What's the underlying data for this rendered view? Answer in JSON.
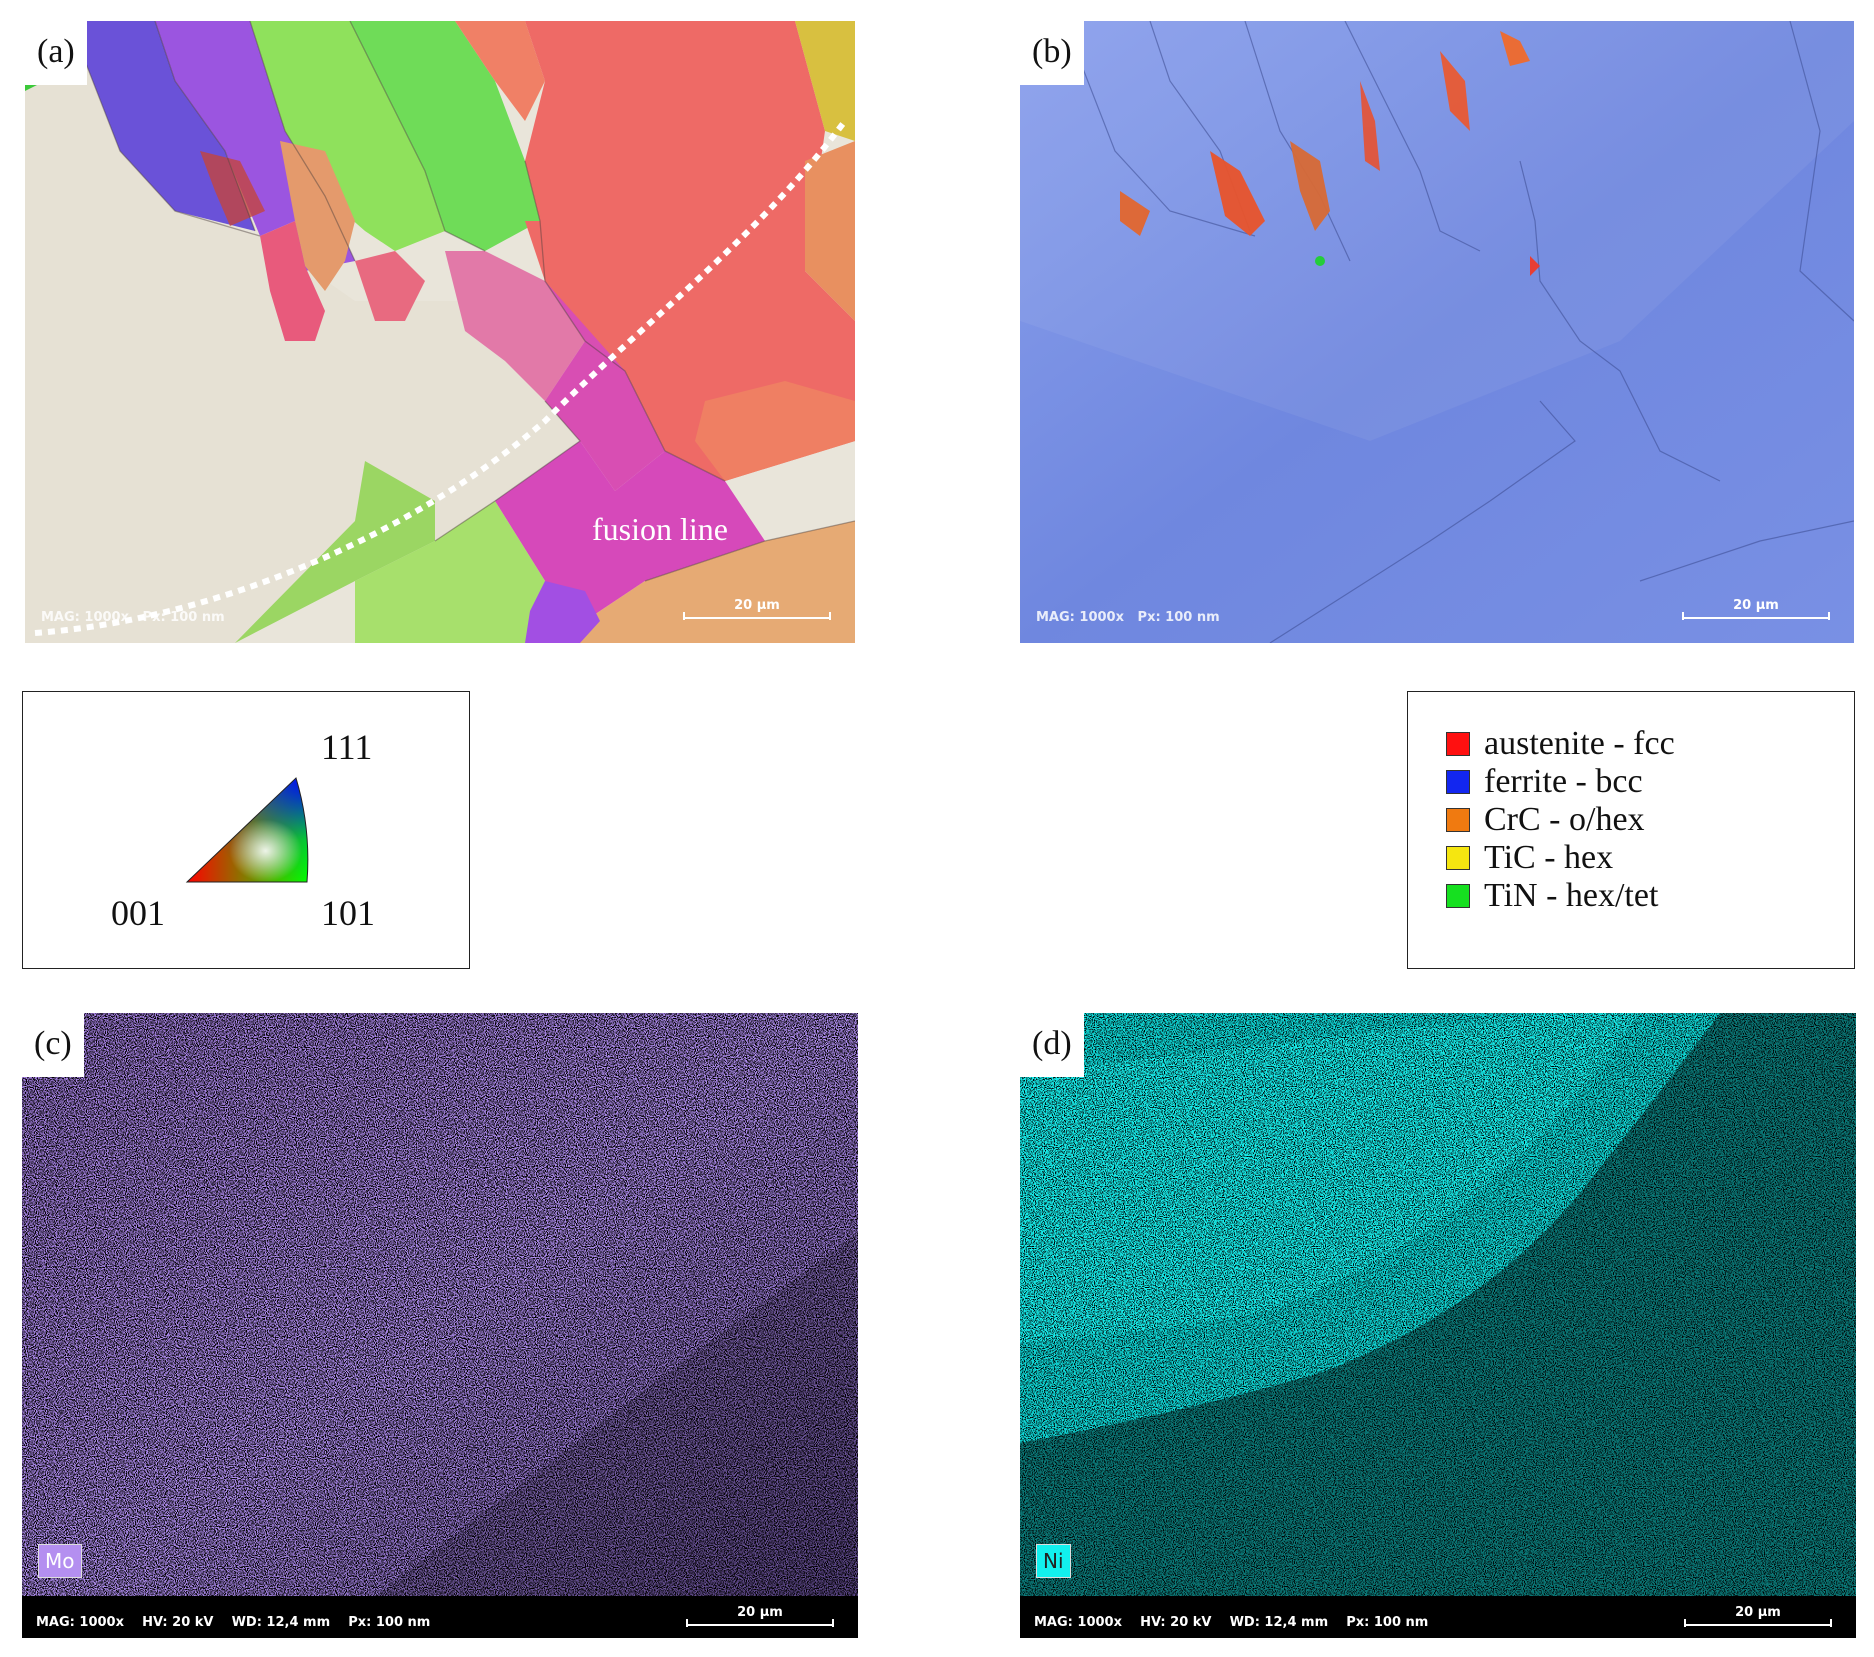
{
  "panels": {
    "a": {
      "label": "(a)",
      "annotation": "fusion line",
      "footer": "MAG: 1000x   Px: 100 nm",
      "scalebar": "20 µm"
    },
    "b": {
      "label": "(b)",
      "footer": "MAG: 1000x   Px: 100 nm",
      "scalebar": "20 µm"
    },
    "c": {
      "label": "(c)",
      "element": "Mo",
      "element_color": "#b48ff0",
      "footer": "MAG: 1000x    HV: 20 kV    WD: 12,4 mm    Px: 100 nm",
      "scalebar": "20 µm"
    },
    "d": {
      "label": "(d)",
      "element": "Ni",
      "element_color": "#12f0ee",
      "footer": "MAG: 1000x    HV: 20 kV    WD: 12,4 mm    Px: 100 nm",
      "scalebar": "20 µm"
    }
  },
  "ipf_key": {
    "corner_top": "111",
    "corner_left": "001",
    "corner_right": "101"
  },
  "phase_legend": [
    {
      "label": "austenite - fcc",
      "color": "#ff1010"
    },
    {
      "label": "ferrite - bcc",
      "color": "#1226f0"
    },
    {
      "label": "CrC - o/hex",
      "color": "#f07a10"
    },
    {
      "label": "TiC - hex",
      "color": "#f5e610"
    },
    {
      "label": "TiN - hex/tet",
      "color": "#16e020"
    }
  ]
}
